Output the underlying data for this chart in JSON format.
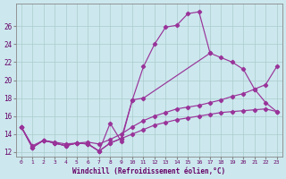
{
  "xlabel": "Windchill (Refroidissement éolien,°C)",
  "background_color": "#cce8ee",
  "line_color": "#993399",
  "grid_color": "#aacccc",
  "ylim": [
    11.5,
    28.5
  ],
  "xlim": [
    -0.5,
    23.5
  ],
  "line1_x": [
    0,
    1,
    2,
    3,
    4,
    5,
    6,
    7,
    8,
    9,
    10,
    11,
    12,
    13,
    14,
    15,
    16,
    17
  ],
  "line1_y": [
    14.8,
    12.5,
    13.3,
    13.0,
    12.7,
    13.0,
    12.9,
    12.1,
    15.2,
    13.2,
    17.8,
    21.5,
    24.0,
    25.9,
    26.1,
    27.4,
    27.6,
    23.0
  ],
  "line2_x": [
    0,
    1,
    2,
    3,
    4,
    5,
    6,
    7,
    8,
    9,
    10,
    11,
    17,
    18,
    19,
    20,
    21,
    22,
    23
  ],
  "line2_y": [
    14.8,
    12.5,
    13.3,
    13.0,
    12.7,
    13.0,
    12.9,
    12.1,
    13.0,
    13.5,
    17.8,
    18.0,
    23.0,
    22.5,
    22.0,
    21.2,
    19.0,
    17.5,
    16.5
  ],
  "line3_x": [
    0,
    1,
    2,
    3,
    4,
    5,
    6,
    7,
    8,
    9,
    10,
    11,
    12,
    13,
    14,
    15,
    16,
    17,
    18,
    19,
    20,
    21,
    22,
    23
  ],
  "line3_y": [
    14.8,
    12.7,
    13.3,
    13.1,
    12.9,
    13.0,
    13.1,
    12.9,
    13.4,
    14.0,
    14.8,
    15.5,
    16.0,
    16.4,
    16.8,
    17.0,
    17.2,
    17.5,
    17.8,
    18.2,
    18.5,
    19.0,
    19.5,
    21.5
  ],
  "line4_x": [
    0,
    1,
    2,
    3,
    4,
    5,
    6,
    7,
    8,
    9,
    10,
    11,
    12,
    13,
    14,
    15,
    16,
    17,
    18,
    19,
    20,
    21,
    22,
    23
  ],
  "line4_y": [
    14.8,
    12.5,
    13.3,
    13.0,
    12.7,
    13.0,
    12.9,
    12.1,
    13.0,
    13.5,
    14.0,
    14.5,
    15.0,
    15.3,
    15.6,
    15.8,
    16.0,
    16.2,
    16.4,
    16.5,
    16.6,
    16.7,
    16.8,
    16.5
  ]
}
